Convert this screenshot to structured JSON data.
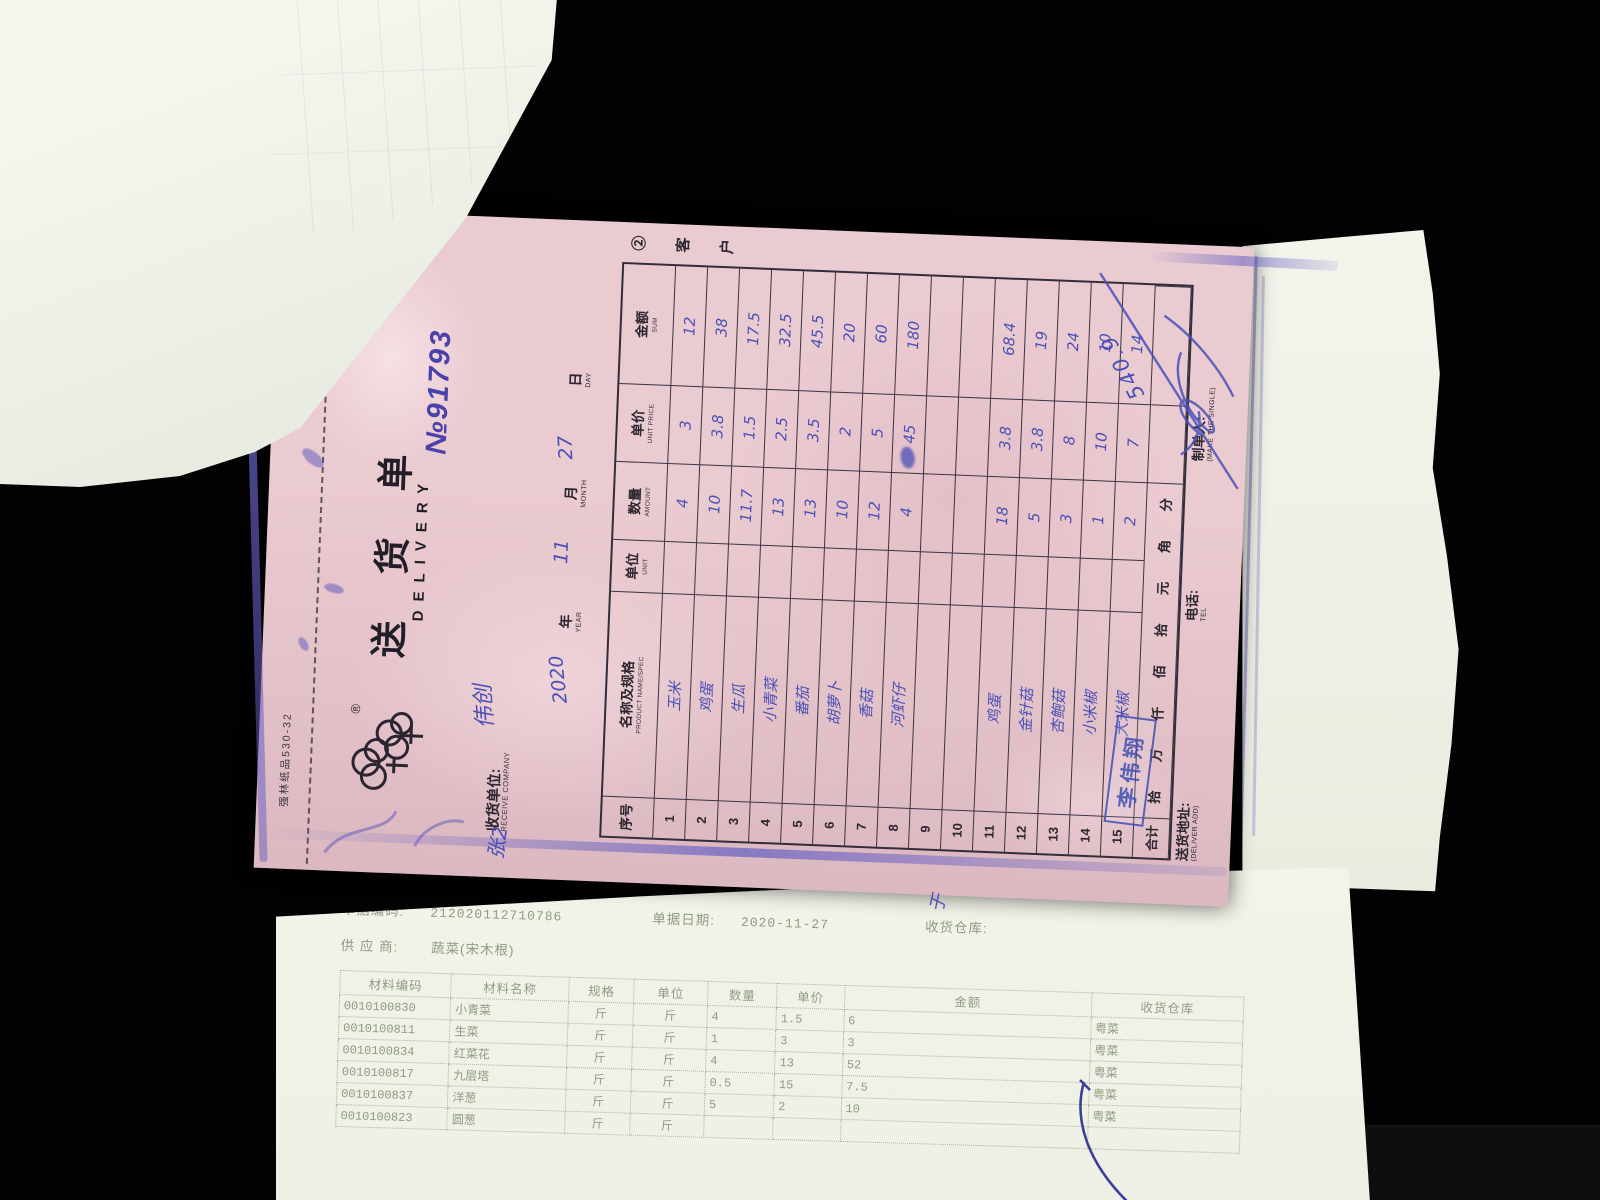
{
  "colors": {
    "ink_blue": "#4a50b8",
    "stamp_blue": "#4050b4",
    "note_number_blue": "#4b41ad",
    "paper_pink": "#e7c3c9",
    "receipt_print_green": "#8e9b83"
  },
  "delivery_note": {
    "mill_mark": "强林纸品530-32",
    "registered": "®",
    "title_cn": "送 货 单",
    "title_en": "DELIVERY",
    "doc_no": "№91793",
    "copy_label": "② 客 户",
    "receiver_label_cn": "收货单位:",
    "receiver_label_en": "RECEIVE COMPANY",
    "receiver_value": "伟创",
    "date": {
      "year": "2020",
      "month": "11",
      "day": "27",
      "year_cn": "年",
      "month_cn": "月",
      "day_cn": "日",
      "year_en": "YEAR",
      "month_en": "MONTH",
      "day_en": "DAY"
    },
    "table": {
      "col_seq_cn": "序号",
      "col_name_cn": "名称及规格",
      "col_name_en": "PRODUCT NAME/SPEC",
      "col_unit_cn": "单位",
      "col_unit_en": "UNIT",
      "col_amount_cn": "数量",
      "col_amount_en": "AMOUNT",
      "col_price_cn": "单价",
      "col_price_en": "UNIT PRICE",
      "col_sum_cn": "金额",
      "col_sum_en": "SUM",
      "rows": [
        {
          "no": "1",
          "name": "玉米",
          "unit": "",
          "amount": "4",
          "price": "3",
          "sum": "12"
        },
        {
          "no": "2",
          "name": "鸡蛋",
          "unit": "",
          "amount": "10",
          "price": "3.8",
          "sum": "38"
        },
        {
          "no": "3",
          "name": "生瓜",
          "unit": "",
          "amount": "11.7",
          "price": "1.5",
          "sum": "17.5"
        },
        {
          "no": "4",
          "name": "小青菜",
          "unit": "",
          "amount": "13",
          "price": "2.5",
          "sum": "32.5"
        },
        {
          "no": "5",
          "name": "番茄",
          "unit": "",
          "amount": "13",
          "price": "3.5",
          "sum": "45.5"
        },
        {
          "no": "6",
          "name": "胡萝卜",
          "unit": "",
          "amount": "10",
          "price": "2",
          "sum": "20"
        },
        {
          "no": "7",
          "name": "香菇",
          "unit": "",
          "amount": "12",
          "price": "5",
          "sum": "60"
        },
        {
          "no": "8",
          "name": "河虾仔",
          "unit": "",
          "amount": "4",
          "price": "45",
          "sum": "180",
          "price_scribbled": true
        },
        {
          "no": "9",
          "name": "",
          "unit": "",
          "amount": "",
          "price": "",
          "sum": ""
        },
        {
          "no": "10",
          "name": "",
          "unit": "",
          "amount": "",
          "price": "",
          "sum": ""
        },
        {
          "no": "11",
          "name": "鸡蛋",
          "unit": "",
          "amount": "18",
          "price": "3.8",
          "sum": "68.4"
        },
        {
          "no": "12",
          "name": "金针菇",
          "unit": "",
          "amount": "5",
          "price": "3.8",
          "sum": "19"
        },
        {
          "no": "13",
          "name": "杏鲍菇",
          "unit": "",
          "amount": "3",
          "price": "8",
          "sum": "24"
        },
        {
          "no": "14",
          "name": "小米椒",
          "unit": "",
          "amount": "1",
          "price": "10",
          "sum": "10"
        },
        {
          "no": "15",
          "name": "大米椒",
          "unit": "",
          "amount": "2",
          "price": "7",
          "sum": "14"
        }
      ],
      "total_label": "合计",
      "total_caps": "拾万仟佰拾元角分"
    },
    "handwritten_total": "540.9",
    "stamp_text": "李伟翔",
    "margin_note": "张2",
    "stray_note": "于",
    "footer": {
      "address_cn": "送货地址:",
      "address_en": "(DELIVER ADD)",
      "tel_cn": "电话:",
      "tel_en": "TEL",
      "maker_cn": "制单人:",
      "maker_en": "(MAKE THE SINGLE)"
    }
  },
  "receipt": {
    "code_label": "单据编码:",
    "code": "212020112710786",
    "date_label": "单据日期:",
    "date": "2020-11-27",
    "warehouse_label": "收货仓库:",
    "supplier_label": "供 应 商:",
    "supplier": "蔬菜(宋木根)",
    "table": {
      "headers": [
        "材料编码",
        "材料名称",
        "规格",
        "单位",
        "数量",
        "单价",
        "金额",
        "收货仓库"
      ],
      "rows": [
        [
          "0010100830",
          "小青菜",
          "斤",
          "斤",
          "4",
          "1.5",
          "6",
          "粤菜"
        ],
        [
          "0010100811",
          "生菜",
          "斤",
          "斤",
          "1",
          "3",
          "3",
          "粤菜"
        ],
        [
          "0010100834",
          "红菜花",
          "斤",
          "斤",
          "4",
          "13",
          "52",
          "粤菜"
        ],
        [
          "0010100817",
          "九层塔",
          "斤",
          "斤",
          "0.5",
          "15",
          "7.5",
          "粤菜"
        ],
        [
          "0010100837",
          "洋葱",
          "斤",
          "斤",
          "5",
          "2",
          "10",
          "粤菜"
        ],
        [
          "0010100823",
          "圆葱",
          "斤",
          "斤",
          "",
          "",
          "",
          ""
        ]
      ]
    }
  }
}
